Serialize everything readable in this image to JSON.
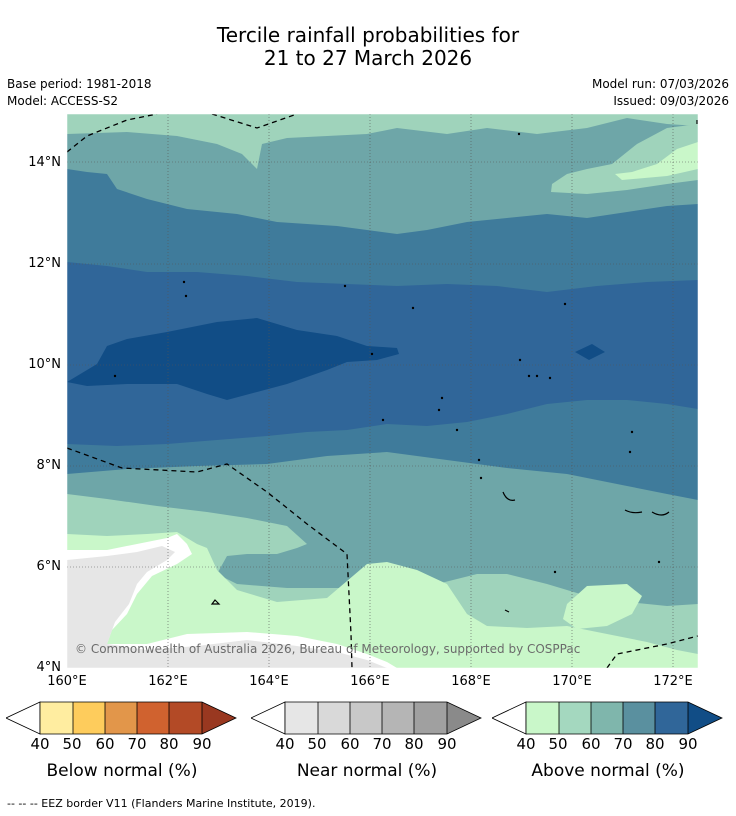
{
  "title": {
    "line1": "Tercile rainfall probabilities for",
    "line2": "21 to 27 March 2026"
  },
  "meta": {
    "base_period": "Base period: 1981-2018",
    "model": "Model: ACCESS-S2",
    "model_run": "Model run: 07/03/2026",
    "issued": "Issued: 09/03/2026"
  },
  "map": {
    "lat_ticks": [
      "14°N",
      "12°N",
      "10°N",
      "8°N",
      "6°N",
      "4°N"
    ],
    "lon_ticks": [
      "160°E",
      "162°E",
      "164°E",
      "166°E",
      "168°E",
      "170°E",
      "172°E"
    ],
    "copyright": "© Commonwealth of Australia 2026, Bureau of Meteorology, supported by COSPPac",
    "colors": {
      "above_40": "#c9f7c9",
      "above_50": "#9fd3bb",
      "above_60": "#6ea6a8",
      "above_70": "#3f7b9b",
      "above_80": "#306699",
      "above_90": "#114d86",
      "near_40": "#e6e6e6",
      "gridline": "#555555"
    }
  },
  "colorbars": [
    {
      "label": "Below normal (%)",
      "ticks": [
        "40",
        "50",
        "60",
        "70",
        "80",
        "90"
      ],
      "colors": [
        "#ffeda0",
        "#fecc5c",
        "#e2964a",
        "#d0622f",
        "#b34a26",
        "#993820"
      ]
    },
    {
      "label": "Near normal (%)",
      "ticks": [
        "40",
        "50",
        "60",
        "70",
        "80",
        "90"
      ],
      "colors": [
        "#e6e6e6",
        "#d9d9d9",
        "#c8c8c8",
        "#b5b5b5",
        "#a0a0a0",
        "#8a8a8a"
      ]
    },
    {
      "label": "Above normal (%)",
      "ticks": [
        "40",
        "50",
        "60",
        "70",
        "80",
        "90"
      ],
      "colors": [
        "#c9f7c9",
        "#a4d8bf",
        "#7fb6ac",
        "#5a909f",
        "#306699",
        "#114d86"
      ]
    }
  ],
  "footer": "--  --  -- EEZ border V11 (Flanders Marine Institute, 2019)."
}
